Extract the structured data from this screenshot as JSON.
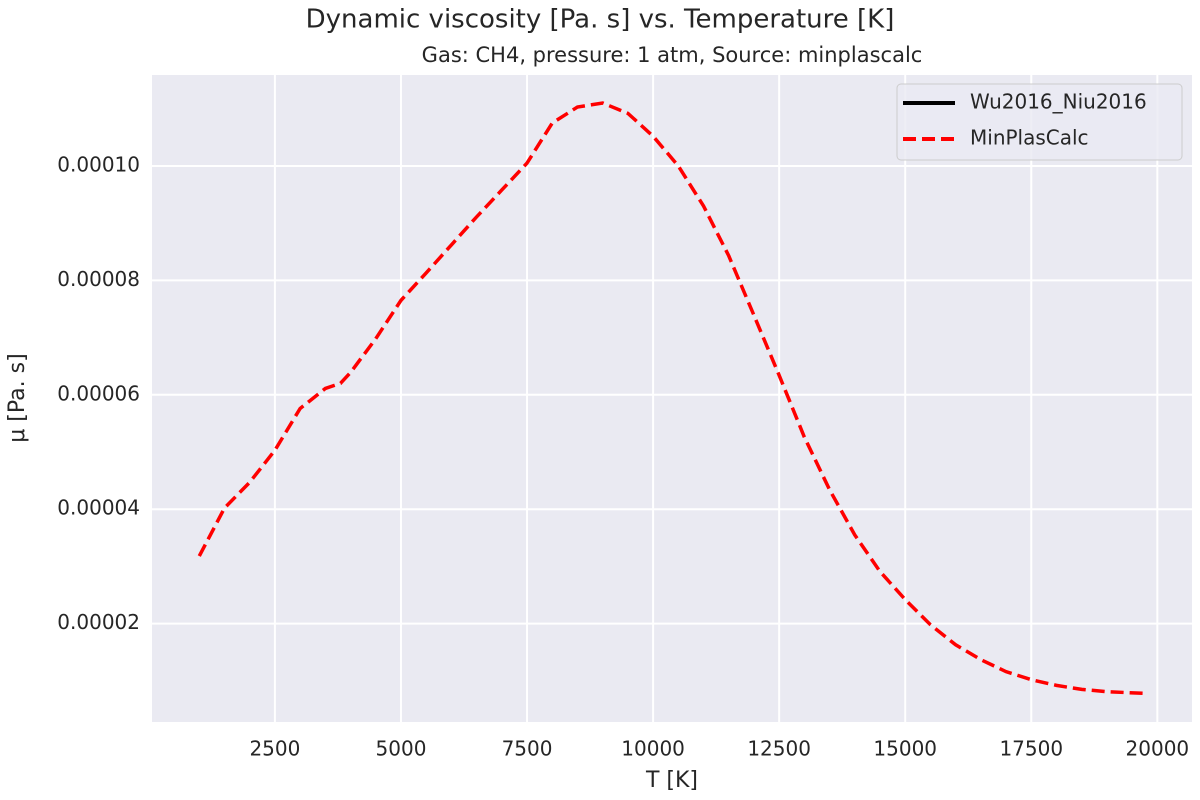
{
  "chart_data": {
    "type": "line",
    "title": "Dynamic viscosity [Pa. s] vs. Temperature [K]",
    "subtitle": "Gas: CH4, pressure: 1 atm, Source: minplascalc",
    "x_label": "T [K]",
    "y_label": "μ [Pa. s]",
    "xlim": [
      62.5,
      20687.5
    ],
    "xticks": [
      2500,
      5000,
      7500,
      10000,
      12500,
      15000,
      17500,
      20000
    ],
    "ylim": [
      2.8e-06,
      0.0001159
    ],
    "yticks": [
      {
        "value": 2e-05,
        "label": "0.00002"
      },
      {
        "value": 4e-05,
        "label": "0.00004"
      },
      {
        "value": 6e-05,
        "label": "0.00006"
      },
      {
        "value": 8e-05,
        "label": "0.00008"
      },
      {
        "value": 0.0001,
        "label": "0.00010"
      }
    ],
    "grid": true,
    "legend": "upper right",
    "series": [
      {
        "name": "Wu2016_Niu2016",
        "color": "#000000",
        "dashed": false,
        "x": [],
        "values": []
      },
      {
        "name": "MinPlasCalc",
        "color": "#ff0000",
        "dashed": true,
        "x": [
          1000,
          1500,
          2000,
          2500,
          3000,
          3500,
          3800,
          4000,
          4500,
          5000,
          5500,
          6000,
          6500,
          7000,
          7500,
          8000,
          8500,
          9000,
          9500,
          10000,
          10500,
          11000,
          11500,
          12000,
          12500,
          13000,
          13500,
          14000,
          14500,
          15000,
          15500,
          16000,
          16500,
          17000,
          17500,
          18000,
          18500,
          19000,
          19750
        ],
        "values": [
          3.18e-05,
          4.02e-05,
          4.47e-05,
          5.03e-05,
          5.76e-05,
          6.11e-05,
          6.2e-05,
          6.39e-05,
          6.98e-05,
          7.65e-05,
          8.13e-05,
          8.62e-05,
          9.11e-05,
          9.58e-05,
          0.0001005,
          0.0001075,
          0.0001103,
          0.000111,
          0.0001092,
          0.0001052,
          0.0001,
          9.3e-05,
          8.43e-05,
          7.39e-05,
          6.34e-05,
          5.26e-05,
          4.34e-05,
          3.55e-05,
          2.91e-05,
          2.42e-05,
          1.98e-05,
          1.63e-05,
          1.37e-05,
          1.16e-05,
          1.02e-05,
          9.2e-06,
          8.5e-06,
          8.1e-06,
          7.8e-06
        ]
      }
    ]
  }
}
